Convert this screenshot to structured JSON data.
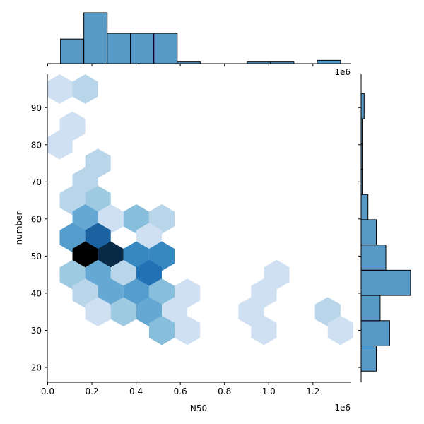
{
  "chart_data": {
    "type": "hexbin",
    "joint": {
      "xlabel": "N50",
      "ylabel": "number",
      "xlim": [
        -0.0015,
        1.37
      ],
      "ylim": [
        16,
        99
      ],
      "x_ticks": [
        0.0,
        0.2,
        0.4,
        0.6,
        0.8,
        1.0,
        1.2
      ],
      "x_tick_labels": [
        "0.0",
        "0.2",
        "0.4",
        "0.6",
        "0.8",
        "1.0",
        "1.2"
      ],
      "y_ticks": [
        20,
        30,
        40,
        50,
        60,
        70,
        80,
        90
      ],
      "y_tick_labels": [
        "20",
        "30",
        "40",
        "50",
        "60",
        "70",
        "80",
        "90"
      ],
      "x_offset_label": "1e6",
      "hex_width": 0.1155,
      "hex_radius": 6.65,
      "max_count": 3,
      "cells": [
        {
          "x": 0.0543,
          "y": 95.0,
          "count": 0.3
        },
        {
          "x": 0.1698,
          "y": 95.0,
          "count": 0.6
        },
        {
          "x": 0.1121,
          "y": 85.0,
          "count": 0.3
        },
        {
          "x": 0.0543,
          "y": 80.0,
          "count": 0.3
        },
        {
          "x": 0.2276,
          "y": 75.0,
          "count": 0.6
        },
        {
          "x": 0.1698,
          "y": 70.0,
          "count": 0.6
        },
        {
          "x": 0.1121,
          "y": 65.0,
          "count": 0.6
        },
        {
          "x": 0.2276,
          "y": 65.0,
          "count": 0.9
        },
        {
          "x": 0.1698,
          "y": 60.0,
          "count": 1.4
        },
        {
          "x": 0.2853,
          "y": 60.0,
          "count": 0.3
        },
        {
          "x": 0.4008,
          "y": 60.0,
          "count": 1.1
        },
        {
          "x": 0.5164,
          "y": 60.0,
          "count": 0.6
        },
        {
          "x": 0.1121,
          "y": 55.0,
          "count": 1.5
        },
        {
          "x": 0.2276,
          "y": 55.0,
          "count": 2.3
        },
        {
          "x": 0.4586,
          "y": 55.0,
          "count": 0.3
        },
        {
          "x": 0.1698,
          "y": 50.0,
          "count": 3.0
        },
        {
          "x": 0.2853,
          "y": 50.0,
          "count": 2.8
        },
        {
          "x": 0.4008,
          "y": 50.0,
          "count": 1.7
        },
        {
          "x": 0.5164,
          "y": 50.0,
          "count": 1.7
        },
        {
          "x": 0.1121,
          "y": 45.0,
          "count": 0.9
        },
        {
          "x": 0.2276,
          "y": 45.0,
          "count": 1.4
        },
        {
          "x": 0.3431,
          "y": 45.0,
          "count": 0.6
        },
        {
          "x": 0.4586,
          "y": 45.0,
          "count": 2.1
        },
        {
          "x": 1.0359,
          "y": 45.0,
          "count": 0.3
        },
        {
          "x": 0.1698,
          "y": 40.0,
          "count": 0.6
        },
        {
          "x": 0.2853,
          "y": 40.0,
          "count": 1.4
        },
        {
          "x": 0.4008,
          "y": 40.0,
          "count": 1.5
        },
        {
          "x": 0.5164,
          "y": 40.0,
          "count": 1.1
        },
        {
          "x": 0.6319,
          "y": 40.0,
          "count": 0.3
        },
        {
          "x": 0.9781,
          "y": 40.0,
          "count": 0.3
        },
        {
          "x": 0.2276,
          "y": 35.0,
          "count": 0.3
        },
        {
          "x": 0.3431,
          "y": 35.0,
          "count": 0.9
        },
        {
          "x": 0.4586,
          "y": 35.0,
          "count": 1.4
        },
        {
          "x": 0.5741,
          "y": 35.0,
          "count": 0.3
        },
        {
          "x": 0.9204,
          "y": 35.0,
          "count": 0.3
        },
        {
          "x": 1.2669,
          "y": 35.0,
          "count": 0.6
        },
        {
          "x": 0.5164,
          "y": 30.0,
          "count": 1.1
        },
        {
          "x": 0.6319,
          "y": 30.0,
          "count": 0.3
        },
        {
          "x": 0.9781,
          "y": 30.0,
          "count": 0.3
        },
        {
          "x": 1.3246,
          "y": 30.0,
          "count": 0.3
        }
      ]
    },
    "marginal_x": {
      "type": "histogram",
      "bin_edges": [
        0.058,
        0.1636,
        0.2692,
        0.3748,
        0.4804,
        0.586,
        0.6916,
        0.7972,
        0.9028,
        1.0084,
        1.114,
        1.2196,
        1.3252
      ],
      "counts": [
        3,
        6.2,
        3.7,
        3.7,
        3.7,
        0.2,
        0,
        0,
        0.2,
        0.2,
        0,
        0.4
      ]
    },
    "marginal_y": {
      "type": "histogram",
      "bin_edges": [
        19,
        25.8,
        32.6,
        39.4,
        46.2,
        53,
        59.8,
        66.6,
        73.4,
        80.2,
        87,
        93.8
      ],
      "counts": [
        4,
        7.5,
        5,
        13,
        6.5,
        4,
        1.8,
        0.3,
        0.3,
        0.3,
        0.8
      ]
    }
  }
}
